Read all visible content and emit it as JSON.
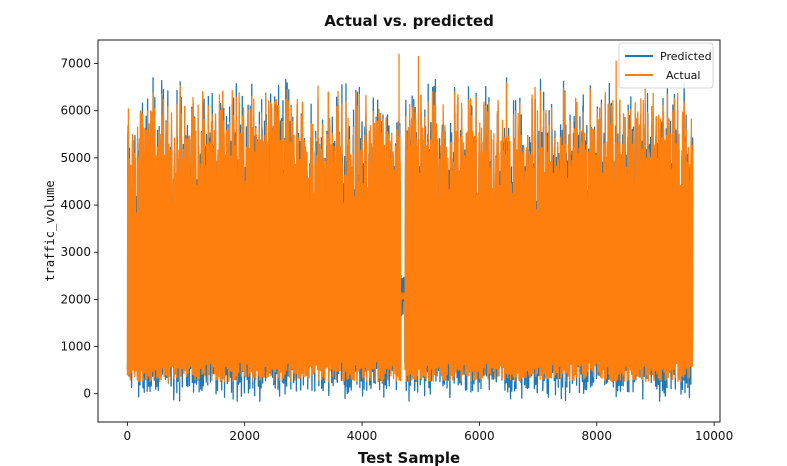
{
  "chart_data": {
    "type": "line",
    "title": "Actual vs. predicted",
    "xlabel": "Test Sample",
    "ylabel": "traffic_volume",
    "xlim": [
      -500,
      10100
    ],
    "ylim": [
      -600,
      7500
    ],
    "xticks": [
      0,
      2000,
      4000,
      6000,
      8000,
      10000
    ],
    "yticks": [
      0,
      1000,
      2000,
      3000,
      4000,
      5000,
      6000,
      7000
    ],
    "legend": {
      "position": "upper right"
    },
    "grid": false,
    "n_samples": 9640,
    "series": [
      {
        "name": "Predicted",
        "color": "#1f77b4",
        "summary": {
          "x_min": 0,
          "x_max": 9640,
          "y_min": -150,
          "y_max": 6700
        }
      },
      {
        "name": "Actual",
        "color": "#ff7f0e",
        "summary": {
          "x_min": 0,
          "x_max": 9640,
          "y_min": 150,
          "y_max": 7250
        }
      }
    ],
    "notable_points": [
      {
        "series": "Predicted",
        "x": 790,
        "y": -130
      },
      {
        "series": "Predicted",
        "x": 2170,
        "y": -40
      },
      {
        "series": "Predicted",
        "x": 3710,
        "y": -100
      },
      {
        "series": "Predicted",
        "x": 9070,
        "y": -160
      },
      {
        "series": "Actual",
        "x": 4630,
        "y": 7200
      },
      {
        "series": "Actual",
        "x": 4960,
        "y": 7150
      },
      {
        "series": "Actual",
        "x": 8330,
        "y": 7050
      }
    ],
    "gap_x_range": [
      4660,
      4730
    ]
  }
}
